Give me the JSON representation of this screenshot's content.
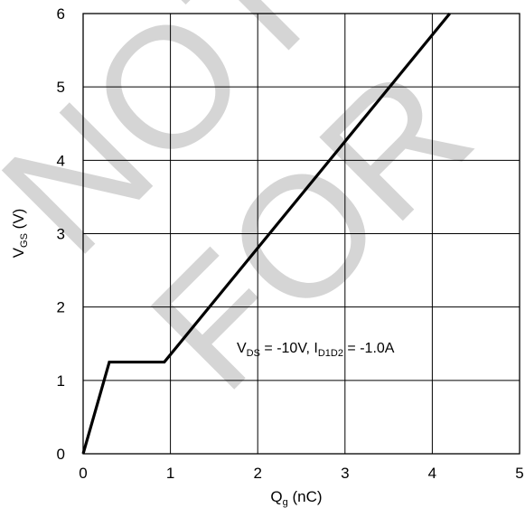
{
  "chart_data": {
    "type": "line",
    "title": "",
    "xlabel": {
      "main": "Q",
      "sub": "g",
      "rest": " (nC)"
    },
    "ylabel": {
      "main": "V",
      "sub": "GS",
      "rest": " (V)"
    },
    "xlim": [
      0,
      5
    ],
    "ylim": [
      0,
      6
    ],
    "xticks": [
      "0",
      "1",
      "2",
      "3",
      "4",
      "5"
    ],
    "yticks": [
      "0",
      "1",
      "2",
      "3",
      "4",
      "5",
      "6"
    ],
    "grid": true,
    "series": [
      {
        "x": [
          0,
          0.3,
          0.93,
          4.2
        ],
        "y": [
          0,
          1.25,
          1.25,
          6.0
        ]
      }
    ],
    "annotation": {
      "parts": [
        {
          "text": "V",
          "sub": false
        },
        {
          "text": "DS",
          "sub": true
        },
        {
          "text": " = -10V, I",
          "sub": false
        },
        {
          "text": "D1D2",
          "sub": true
        },
        {
          "text": " = -1.0A",
          "sub": false
        }
      ]
    },
    "watermark": [
      "NOT",
      "FOR"
    ]
  }
}
